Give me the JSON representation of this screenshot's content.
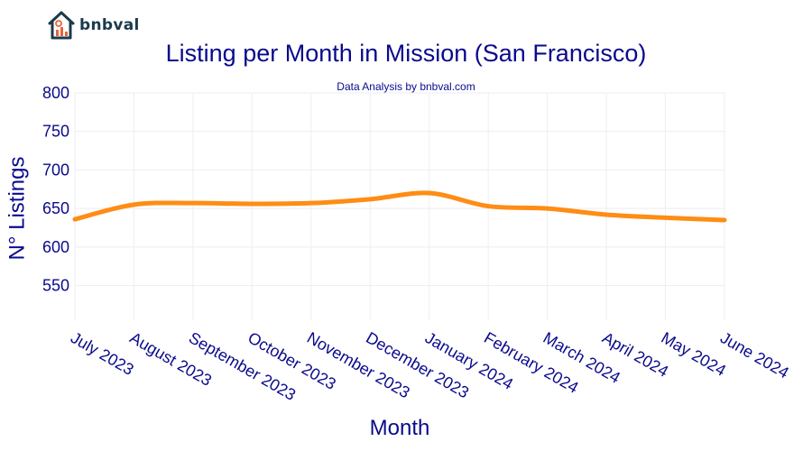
{
  "brand": {
    "name": "bnbval",
    "logo_icon": "house-chart-icon",
    "logo_color": "#1b3a4b",
    "accent_color": "#e8643c"
  },
  "chart_data": {
    "type": "line",
    "title": "Listing per Month in Mission (San Francisco)",
    "subtitle": "Data Analysis by bnbval.com",
    "xlabel": "Month",
    "ylabel": "N° Listings",
    "categories": [
      "July 2023",
      "August 2023",
      "September 2023",
      "October 2023",
      "November 2023",
      "December 2023",
      "January 2024",
      "February 2024",
      "March 2024",
      "April 2024",
      "May 2024",
      "June 2024"
    ],
    "series": [
      {
        "values": [
          636,
          655,
          657,
          656,
          657,
          662,
          670,
          653,
          650,
          642,
          638,
          635
        ],
        "color": "#ff8c14"
      }
    ],
    "ylim": [
      505,
      800
    ],
    "yticks": [
      550,
      600,
      650,
      700,
      750,
      800
    ],
    "grid": true
  }
}
